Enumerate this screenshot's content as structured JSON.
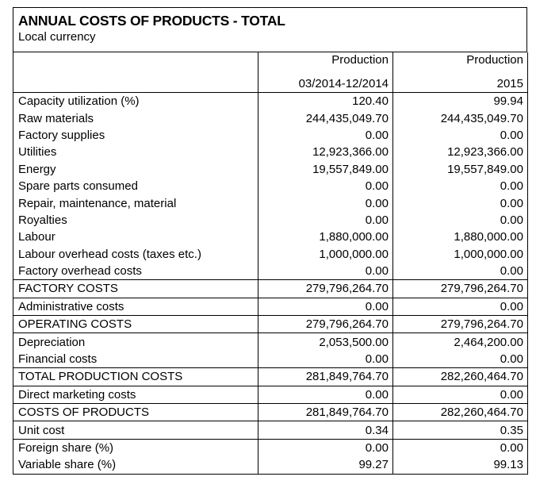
{
  "report": {
    "title": "ANNUAL COSTS OF PRODUCTS - TOTAL",
    "subtitle": "Local currency"
  },
  "columns": [
    {
      "line1": "Production",
      "line2": "03/2014-12/2014"
    },
    {
      "line1": "Production",
      "line2": "2015"
    }
  ],
  "rows": [
    {
      "label": "Capacity utilization (%)",
      "v1": "120.40",
      "v2": "99.94"
    },
    {
      "label": "Raw materials",
      "v1": "244,435,049.70",
      "v2": "244,435,049.70"
    },
    {
      "label": "Factory supplies",
      "v1": "0.00",
      "v2": "0.00"
    },
    {
      "label": "Utilities",
      "v1": "12,923,366.00",
      "v2": "12,923,366.00"
    },
    {
      "label": "Energy",
      "v1": "19,557,849.00",
      "v2": "19,557,849.00"
    },
    {
      "label": "Spare parts consumed",
      "v1": "0.00",
      "v2": "0.00"
    },
    {
      "label": "Repair, maintenance, material",
      "v1": "0.00",
      "v2": "0.00"
    },
    {
      "label": "Royalties",
      "v1": "0.00",
      "v2": "0.00"
    },
    {
      "label": "Labour",
      "v1": "1,880,000.00",
      "v2": "1,880,000.00"
    },
    {
      "label": "Labour overhead costs (taxes etc.)",
      "v1": "1,000,000.00",
      "v2": "1,000,000.00"
    },
    {
      "label": "Factory overhead costs",
      "v1": "0.00",
      "v2": "0.00"
    },
    {
      "label": "FACTORY COSTS",
      "v1": "279,796,264.70",
      "v2": "279,796,264.70"
    },
    {
      "label": "Administrative costs",
      "v1": "0.00",
      "v2": "0.00"
    },
    {
      "label": "OPERATING COSTS",
      "v1": "279,796,264.70",
      "v2": "279,796,264.70"
    },
    {
      "label": "Depreciation",
      "v1": "2,053,500.00",
      "v2": "2,464,200.00"
    },
    {
      "label": "Financial costs",
      "v1": "0.00",
      "v2": "0.00"
    },
    {
      "label": "TOTAL PRODUCTION COSTS",
      "v1": "281,849,764.70",
      "v2": "282,260,464.70"
    },
    {
      "label": "Direct marketing costs",
      "v1": "0.00",
      "v2": "0.00"
    },
    {
      "label": "COSTS OF PRODUCTS",
      "v1": "281,849,764.70",
      "v2": "282,260,464.70"
    },
    {
      "label": "Unit cost",
      "v1": "0.34",
      "v2": "0.35"
    },
    {
      "label": "Foreign share (%)",
      "v1": "0.00",
      "v2": "0.00"
    },
    {
      "label": "Variable share (%)",
      "v1": "99.27",
      "v2": "99.13"
    }
  ]
}
